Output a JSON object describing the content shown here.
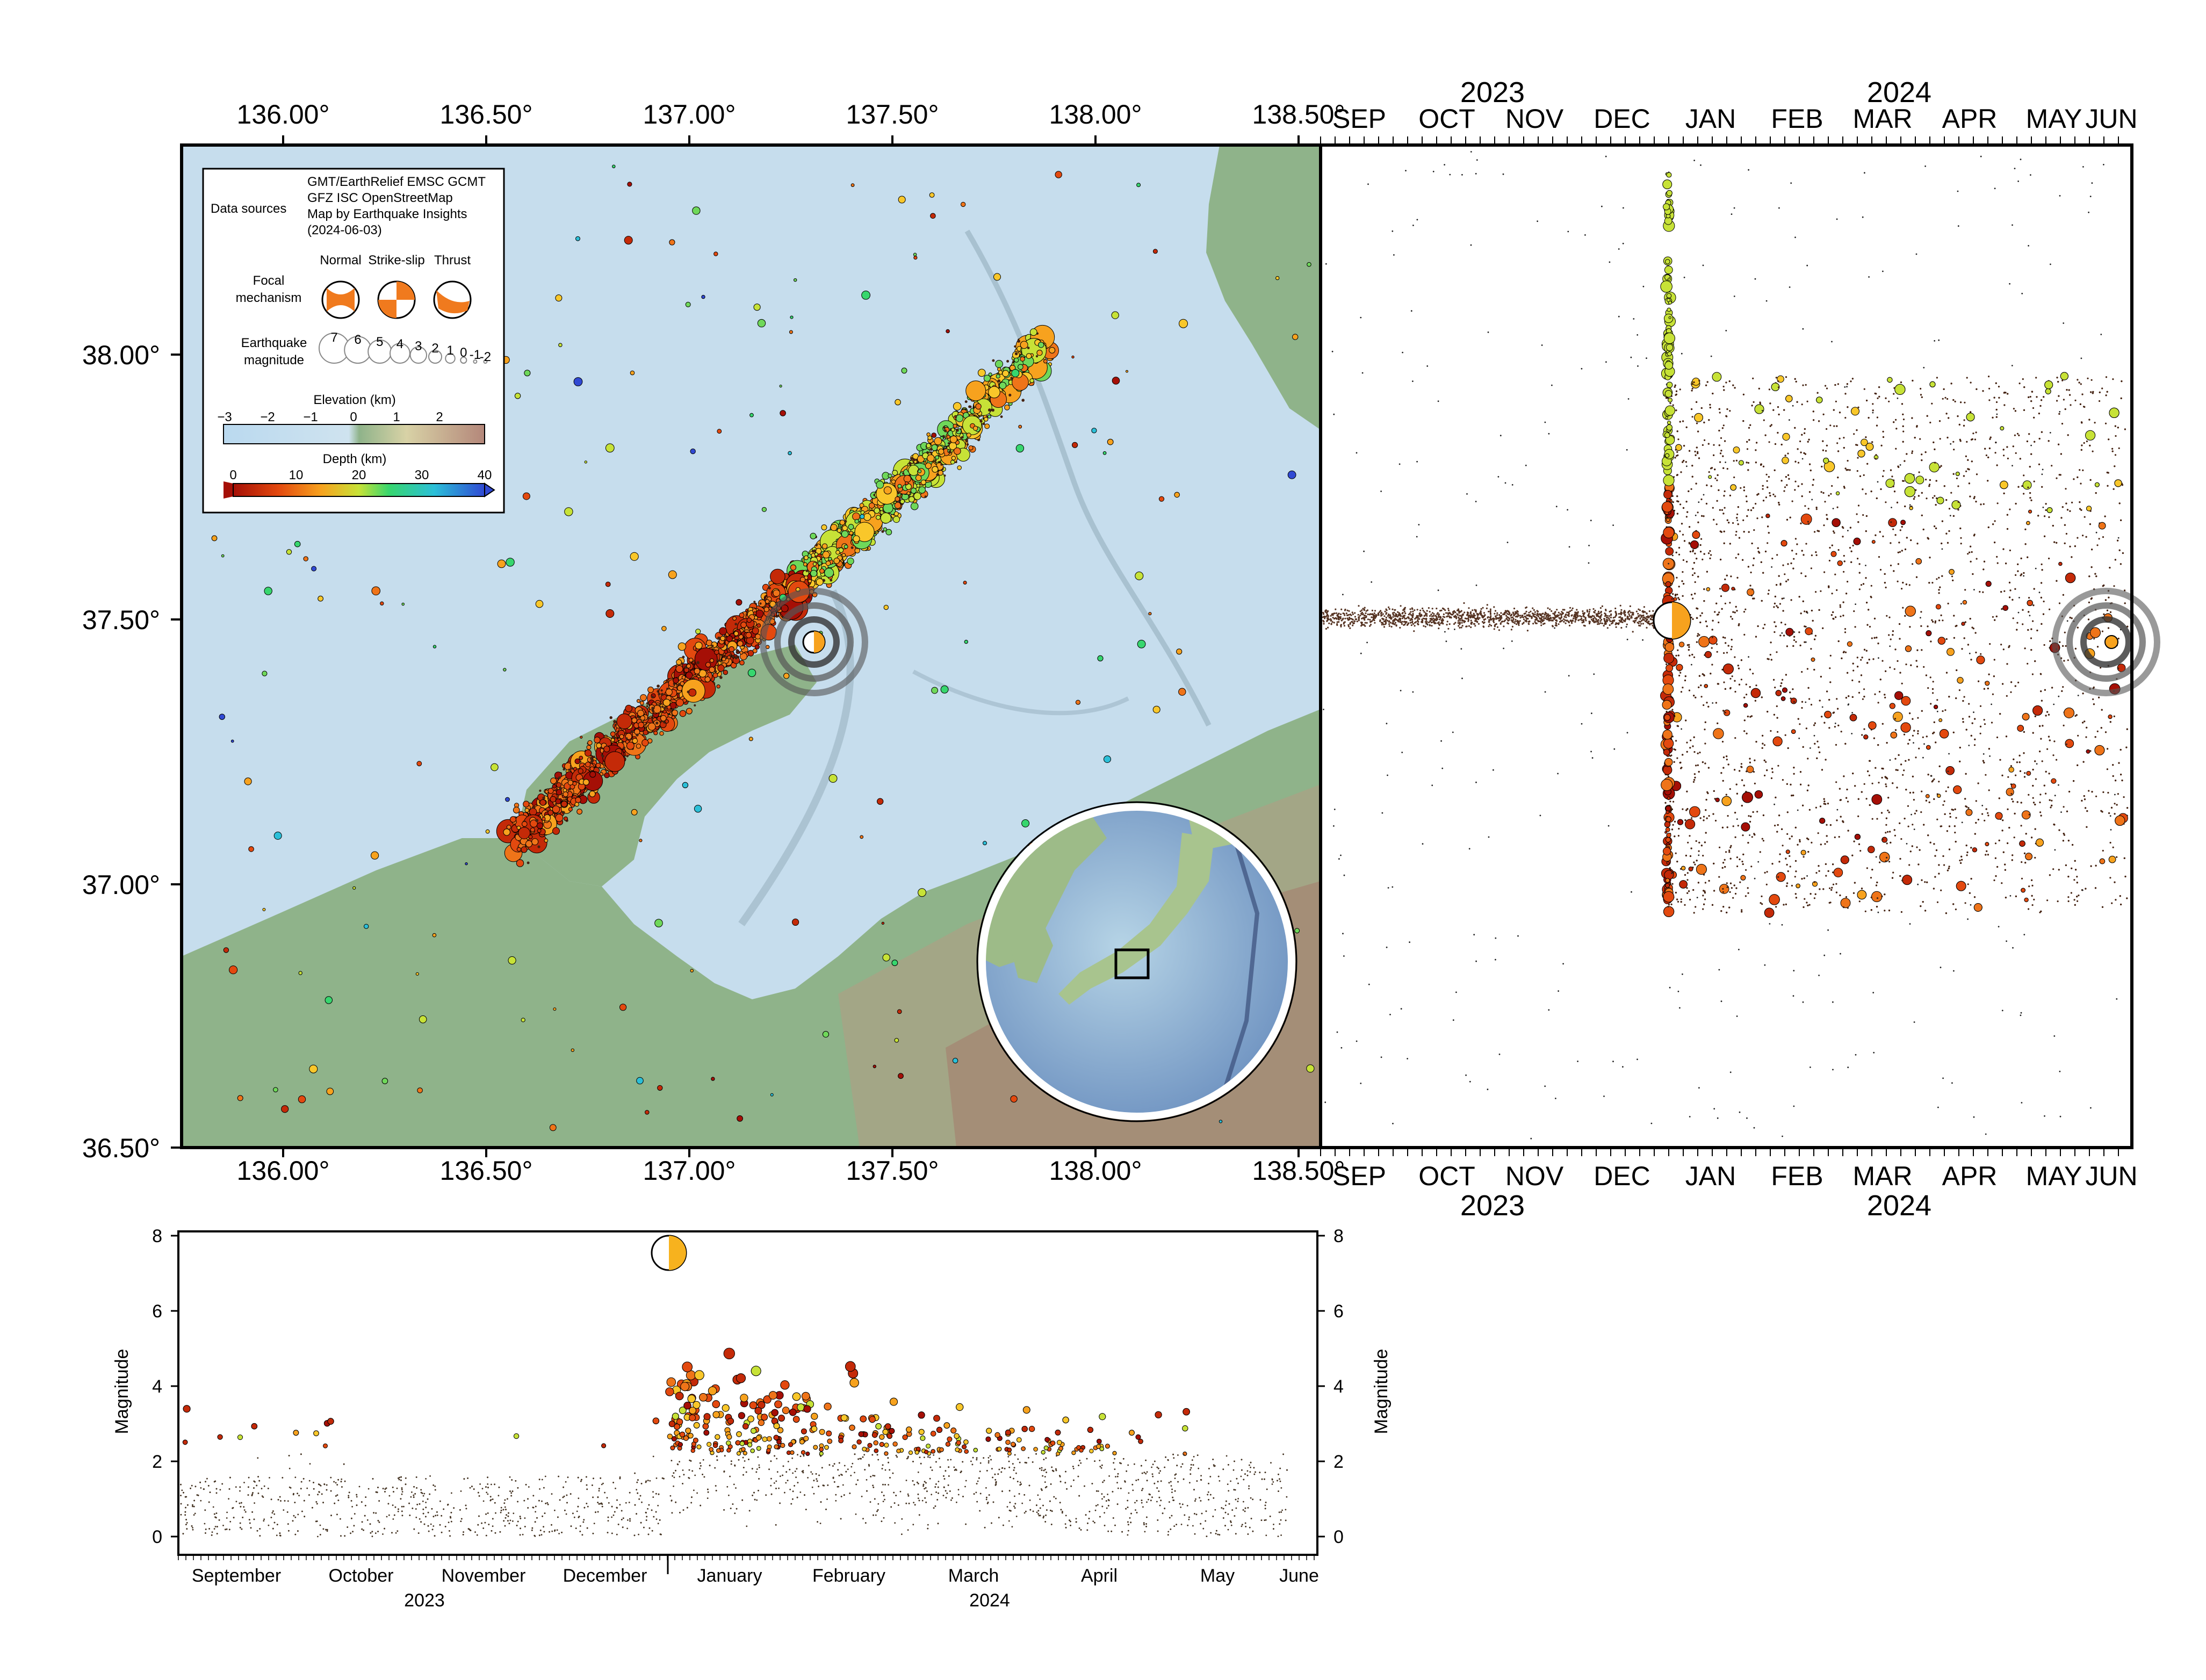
{
  "map": {
    "lon_ticks": [
      "136.00°",
      "136.50°",
      "137.00°",
      "137.50°",
      "138.00°",
      "138.50°"
    ],
    "lat_ticks": [
      "38.00°",
      "37.50°",
      "37.00°",
      "36.50°"
    ],
    "lon_range": [
      135.8,
      138.45
    ],
    "lat_range": [
      36.5,
      38.4
    ]
  },
  "legend": {
    "data_sources_label": "Data sources",
    "data_sources_text": [
      "GMT/EarthRelief EMSC GCMT",
      "GFZ ISC OpenStreetMap",
      "Map by Earthquake Insights",
      "(2024-06-03)"
    ],
    "focal_label": [
      "Focal",
      "mechanism"
    ],
    "focal_types": [
      "Normal",
      "Strike-slip",
      "Thrust"
    ],
    "magnitude_label": [
      "Earthquake",
      "magnitude"
    ],
    "magnitude_values": [
      "7",
      "6",
      "5",
      "4",
      "3",
      "2",
      "1",
      "0",
      "-1",
      "-2"
    ],
    "elevation_label": "Elevation (km)",
    "elevation_ticks": [
      "−3",
      "−2",
      "−1",
      "0",
      "1",
      "2"
    ],
    "depth_label": "Depth (km)",
    "depth_ticks": [
      "0",
      "10",
      "20",
      "30",
      "40"
    ]
  },
  "timeline": {
    "months_short": [
      "SEP",
      "OCT",
      "NOV",
      "DEC",
      "JAN",
      "FEB",
      "MAR",
      "APR",
      "MAY",
      "JUN"
    ],
    "years": [
      "2023",
      "2024"
    ]
  },
  "magnitude_chart": {
    "ylabel": "Magnitude",
    "yticks": [
      "0",
      "2",
      "4",
      "6",
      "8"
    ],
    "months": [
      "September",
      "October",
      "November",
      "December",
      "January",
      "February",
      "March",
      "April",
      "May",
      "June"
    ],
    "years": [
      "2023",
      "2024"
    ]
  },
  "colors": {
    "ocean": "#c6dded",
    "land": "#8fb38a",
    "depth_shallow": "#a50f06",
    "depth_mid": "#ffd23a",
    "depth_deep": "#2c5ed6"
  }
}
